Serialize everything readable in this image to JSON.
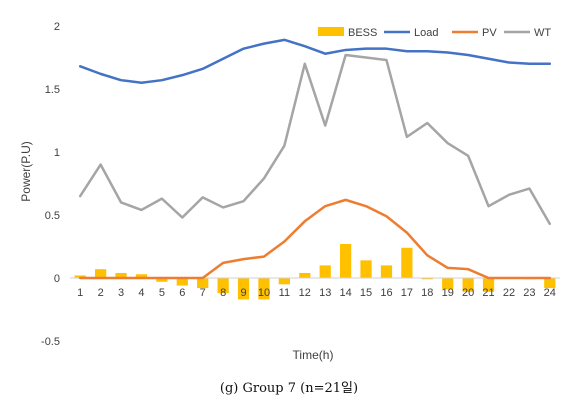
{
  "chart_data": {
    "type": "bar",
    "caption": "(g) Group 7 (n=21일)",
    "xlabel": "Time(h)",
    "ylabel": "Power(P.U)",
    "ylim": [
      -0.5,
      2
    ],
    "yticks": [
      "-0.5",
      "0",
      "0.5",
      "1",
      "1.5",
      "2"
    ],
    "categories": [
      "1",
      "2",
      "3",
      "4",
      "5",
      "6",
      "7",
      "8",
      "9",
      "10",
      "11",
      "12",
      "13",
      "14",
      "15",
      "16",
      "17",
      "18",
      "19",
      "20",
      "21",
      "22",
      "23",
      "24"
    ],
    "grid": false,
    "legend_position": "top-right",
    "series": [
      {
        "name": "BESS",
        "kind": "bar",
        "color": "#FFC000",
        "values": [
          0.02,
          0.07,
          0.04,
          0.03,
          -0.03,
          -0.06,
          -0.08,
          -0.12,
          -0.17,
          -0.17,
          -0.05,
          0.04,
          0.1,
          0.27,
          0.14,
          0.1,
          0.24,
          -0.01,
          -0.09,
          -0.11,
          -0.11,
          0.0,
          -0.01,
          -0.08
        ]
      },
      {
        "name": "Load",
        "kind": "line",
        "color": "#4472C4",
        "values": [
          1.68,
          1.62,
          1.57,
          1.55,
          1.57,
          1.61,
          1.66,
          1.74,
          1.82,
          1.86,
          1.89,
          1.84,
          1.78,
          1.81,
          1.82,
          1.82,
          1.8,
          1.8,
          1.79,
          1.77,
          1.74,
          1.71,
          1.7,
          1.7
        ]
      },
      {
        "name": "PV",
        "kind": "line",
        "color": "#ED7D31",
        "values": [
          0.0,
          0.0,
          0.0,
          0.0,
          0.0,
          0.0,
          0.0,
          0.12,
          0.15,
          0.17,
          0.29,
          0.45,
          0.57,
          0.62,
          0.57,
          0.49,
          0.36,
          0.18,
          0.08,
          0.07,
          0.0,
          0.0,
          0.0,
          0.0
        ]
      },
      {
        "name": "WT",
        "kind": "line",
        "color": "#A5A5A5",
        "values": [
          0.65,
          0.9,
          0.6,
          0.54,
          0.63,
          0.48,
          0.64,
          0.56,
          0.61,
          0.79,
          1.05,
          1.7,
          1.21,
          1.77,
          1.75,
          1.73,
          1.12,
          1.23,
          1.07,
          0.97,
          0.57,
          0.66,
          0.71,
          0.43
        ]
      }
    ]
  }
}
